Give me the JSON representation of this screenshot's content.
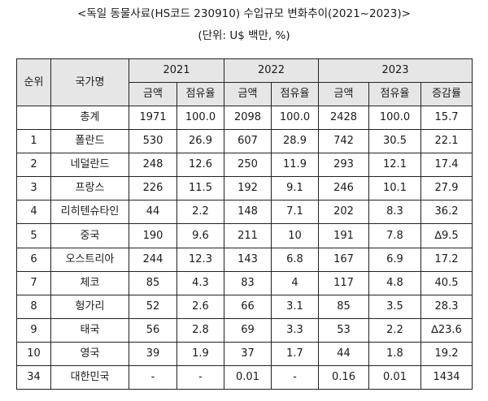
{
  "title": "<독일 동물사료(HS코드 230910) 수입규모 변화추이(2021~2023)>",
  "unit": "(단위: U$ 백만, %)",
  "table": {
    "col_rank": "순위",
    "col_country": "국가명",
    "years": [
      "2021",
      "2022",
      "2023"
    ],
    "sub_amount": "금액",
    "sub_share": "점유율",
    "sub_growth": "증감률",
    "rows": [
      {
        "rank": "",
        "country": "총계",
        "v2021": "1971",
        "s2021": "100.0",
        "v2022": "2098",
        "s2022": "100.0",
        "v2023": "2428",
        "s2023": "100.0",
        "growth": "15.7"
      },
      {
        "rank": "1",
        "country": "폴란드",
        "v2021": "530",
        "s2021": "26.9",
        "v2022": "607",
        "s2022": "28.9",
        "v2023": "742",
        "s2023": "30.5",
        "growth": "22.1"
      },
      {
        "rank": "2",
        "country": "네덜란드",
        "v2021": "248",
        "s2021": "12.6",
        "v2022": "250",
        "s2022": "11.9",
        "v2023": "293",
        "s2023": "12.1",
        "growth": "17.4"
      },
      {
        "rank": "3",
        "country": "프랑스",
        "v2021": "226",
        "s2021": "11.5",
        "v2022": "192",
        "s2022": "9.1",
        "v2023": "246",
        "s2023": "10.1",
        "growth": "27.9"
      },
      {
        "rank": "4",
        "country": "리히텐슈타인",
        "v2021": "44",
        "s2021": "2.2",
        "v2022": "148",
        "s2022": "7.1",
        "v2023": "202",
        "s2023": "8.3",
        "growth": "36.2"
      },
      {
        "rank": "5",
        "country": "중국",
        "v2021": "190",
        "s2021": "9.6",
        "v2022": "211",
        "s2022": "10",
        "v2023": "191",
        "s2023": "7.8",
        "growth": "∆9.5"
      },
      {
        "rank": "6",
        "country": "오스트리아",
        "v2021": "244",
        "s2021": "12.3",
        "v2022": "143",
        "s2022": "6.8",
        "v2023": "167",
        "s2023": "6.9",
        "growth": "17.2"
      },
      {
        "rank": "7",
        "country": "체코",
        "v2021": "85",
        "s2021": "4.3",
        "v2022": "83",
        "s2022": "4",
        "v2023": "117",
        "s2023": "4.8",
        "growth": "40.5"
      },
      {
        "rank": "8",
        "country": "헝가리",
        "v2021": "52",
        "s2021": "2.6",
        "v2022": "66",
        "s2022": "3.1",
        "v2023": "85",
        "s2023": "3.5",
        "growth": "28.3"
      },
      {
        "rank": "9",
        "country": "태국",
        "v2021": "56",
        "s2021": "2.8",
        "v2022": "69",
        "s2022": "3.3",
        "v2023": "53",
        "s2023": "2.2",
        "growth": "∆23.6"
      },
      {
        "rank": "10",
        "country": "영국",
        "v2021": "39",
        "s2021": "1.9",
        "v2022": "37",
        "s2022": "1.7",
        "v2023": "44",
        "s2023": "1.8",
        "growth": "19.2"
      },
      {
        "rank": "34",
        "country": "대한민국",
        "v2021": "-",
        "s2021": "-",
        "v2022": "0.01",
        "s2022": "-",
        "v2023": "0.16",
        "s2023": "0.01",
        "growth": "1434"
      }
    ]
  }
}
